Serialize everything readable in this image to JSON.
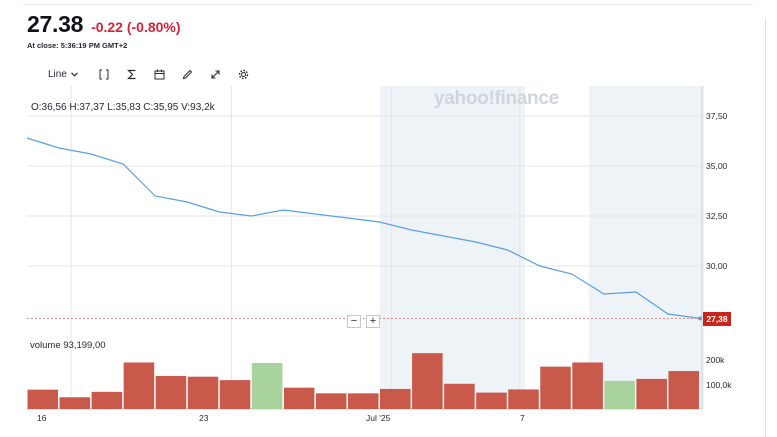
{
  "quote": {
    "price": "27.38",
    "change": "-0.22 (-0.80%)",
    "at_close": "At close: 5:36:19 PM GMT+2"
  },
  "toolbar": {
    "chart_type_label": "Line",
    "icons": [
      "chevron-down-icon",
      "compare-bracket-icon",
      "indicators-sigma-icon",
      "calendar-icon",
      "draw-pencil-icon",
      "expand-icon",
      "settings-gear-icon"
    ]
  },
  "ohlc": "O:36,56  H:37,37  L:35,83  C:35,95  V:93,2k",
  "watermark": "yahoo!finance",
  "last_price_tag": "27,38",
  "volume_label": "volume  93,199,00",
  "zoom": {
    "minus": "−",
    "plus": "+"
  },
  "colors": {
    "line": "#5a9fe6",
    "down": "#c9594a",
    "up": "#a8d39c",
    "negative": "#d3243b",
    "shade": "#eef3f8"
  },
  "chart_data": {
    "type": "line",
    "price_y_ticks": [
      "37,50",
      "35,00",
      "32,50",
      "30,00"
    ],
    "price_y_tick_values": [
      37.5,
      35.0,
      32.5,
      30.0
    ],
    "volume_y_ticks": [
      "200k",
      "100,0k"
    ],
    "volume_y_tick_values": [
      200000,
      100000
    ],
    "x_tick_labels": [
      "16",
      "23",
      "Jul '25",
      "7"
    ],
    "x_tick_index": [
      1,
      6,
      11,
      15
    ],
    "price_ylim": [
      26.4,
      39.0
    ],
    "volume_ylim": [
      0,
      290000
    ],
    "price_series": [
      36.4,
      35.9,
      35.6,
      35.1,
      33.5,
      33.2,
      32.7,
      32.5,
      32.8,
      32.6,
      32.4,
      32.2,
      31.8,
      31.5,
      31.2,
      30.8,
      30.0,
      29.6,
      28.6,
      28.7,
      27.6,
      27.38
    ],
    "volume_series": [
      {
        "v": 79000,
        "dir": "down"
      },
      {
        "v": 48000,
        "dir": "down"
      },
      {
        "v": 70000,
        "dir": "down"
      },
      {
        "v": 190000,
        "dir": "down"
      },
      {
        "v": 135000,
        "dir": "down"
      },
      {
        "v": 132000,
        "dir": "down"
      },
      {
        "v": 118000,
        "dir": "down"
      },
      {
        "v": 188000,
        "dir": "up"
      },
      {
        "v": 87000,
        "dir": "down"
      },
      {
        "v": 64000,
        "dir": "down"
      },
      {
        "v": 64000,
        "dir": "down"
      },
      {
        "v": 82000,
        "dir": "down"
      },
      {
        "v": 228000,
        "dir": "down"
      },
      {
        "v": 103000,
        "dir": "down"
      },
      {
        "v": 67000,
        "dir": "down"
      },
      {
        "v": 80000,
        "dir": "down"
      },
      {
        "v": 173000,
        "dir": "down"
      },
      {
        "v": 190000,
        "dir": "down"
      },
      {
        "v": 115000,
        "dir": "up"
      },
      {
        "v": 123000,
        "dir": "down"
      },
      {
        "v": 155000,
        "dir": "down"
      }
    ],
    "last_price": 27.38,
    "grid": true
  }
}
